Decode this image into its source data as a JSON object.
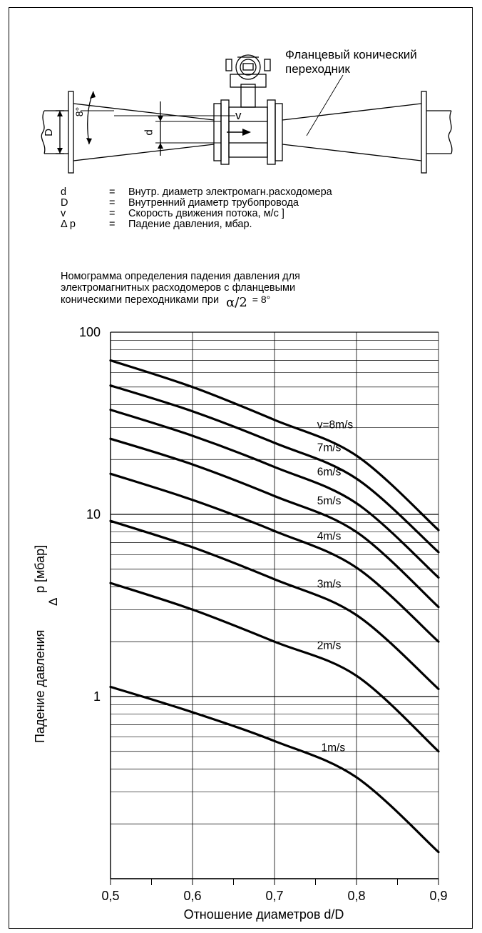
{
  "diagram": {
    "callout": [
      "Фланцевый конический",
      "переходник"
    ],
    "label_D": "D",
    "label_d": "d",
    "label_v": "v",
    "label_angle": "8°"
  },
  "legend": [
    {
      "symbol": "d",
      "eq": "=",
      "text": "Внутр. диаметр электромагн.расходомера"
    },
    {
      "symbol": "D",
      "eq": "=",
      "text": "Внутренний диаметр трубопровода"
    },
    {
      "symbol": "v",
      "eq": "=",
      "text": "Скорость движения потока, м/с ]"
    },
    {
      "symbol": "Δ p",
      "eq": "=",
      "text": "Падение давления, мбар."
    }
  ],
  "caption": {
    "line1": "Номограмма определения падения давления для",
    "line2": "электромагнитных расходомеров с фланцевыми",
    "line3": "коническими переходниками при",
    "formula": "α/2",
    "formula_value": "= 8°"
  },
  "chart_data": {
    "type": "line",
    "yscale": "log",
    "xlim": [
      0.5,
      0.9
    ],
    "ylim": [
      0.1,
      100
    ],
    "xticks": [
      "0,5",
      "0,6",
      "0,7",
      "0,8",
      "0,9"
    ],
    "yticks": [
      "100",
      "10",
      "1"
    ],
    "xlabel": "Отношение диаметров d/D",
    "ylabel_main": "Падение давления",
    "ylabel_symbol": "Δ",
    "ylabel_unit": "p [мбар]",
    "grid": true,
    "series": [
      {
        "name": "1m/s",
        "x": [
          0.5,
          0.6,
          0.7,
          0.8,
          0.9
        ],
        "y": [
          1.13,
          0.82,
          0.57,
          0.36,
          0.14
        ]
      },
      {
        "name": "2m/s",
        "x": [
          0.5,
          0.6,
          0.7,
          0.8,
          0.9
        ],
        "y": [
          4.2,
          3.0,
          2.0,
          1.3,
          0.5
        ]
      },
      {
        "name": "3m/s",
        "x": [
          0.5,
          0.6,
          0.7,
          0.8,
          0.9
        ],
        "y": [
          9.2,
          6.6,
          4.4,
          2.8,
          1.1
        ]
      },
      {
        "name": "4m/s",
        "x": [
          0.5,
          0.6,
          0.7,
          0.8,
          0.9
        ],
        "y": [
          16.7,
          12.0,
          8.1,
          5.1,
          2.0
        ]
      },
      {
        "name": "5m/s",
        "x": [
          0.5,
          0.6,
          0.7,
          0.8,
          0.9
        ],
        "y": [
          26.0,
          18.8,
          12.6,
          8.0,
          3.1
        ]
      },
      {
        "name": "6m/s",
        "x": [
          0.5,
          0.6,
          0.7,
          0.8,
          0.9
        ],
        "y": [
          37.5,
          27.0,
          18.2,
          11.5,
          4.5
        ]
      },
      {
        "name": "7m/s",
        "x": [
          0.5,
          0.6,
          0.7,
          0.8,
          0.9
        ],
        "y": [
          51.0,
          36.8,
          24.7,
          15.7,
          6.2
        ]
      },
      {
        "name": "v=8m/s",
        "x": [
          0.5,
          0.6,
          0.7,
          0.8,
          0.9
        ],
        "y": [
          70.0,
          50.0,
          33.0,
          21.0,
          8.2
        ]
      }
    ]
  }
}
